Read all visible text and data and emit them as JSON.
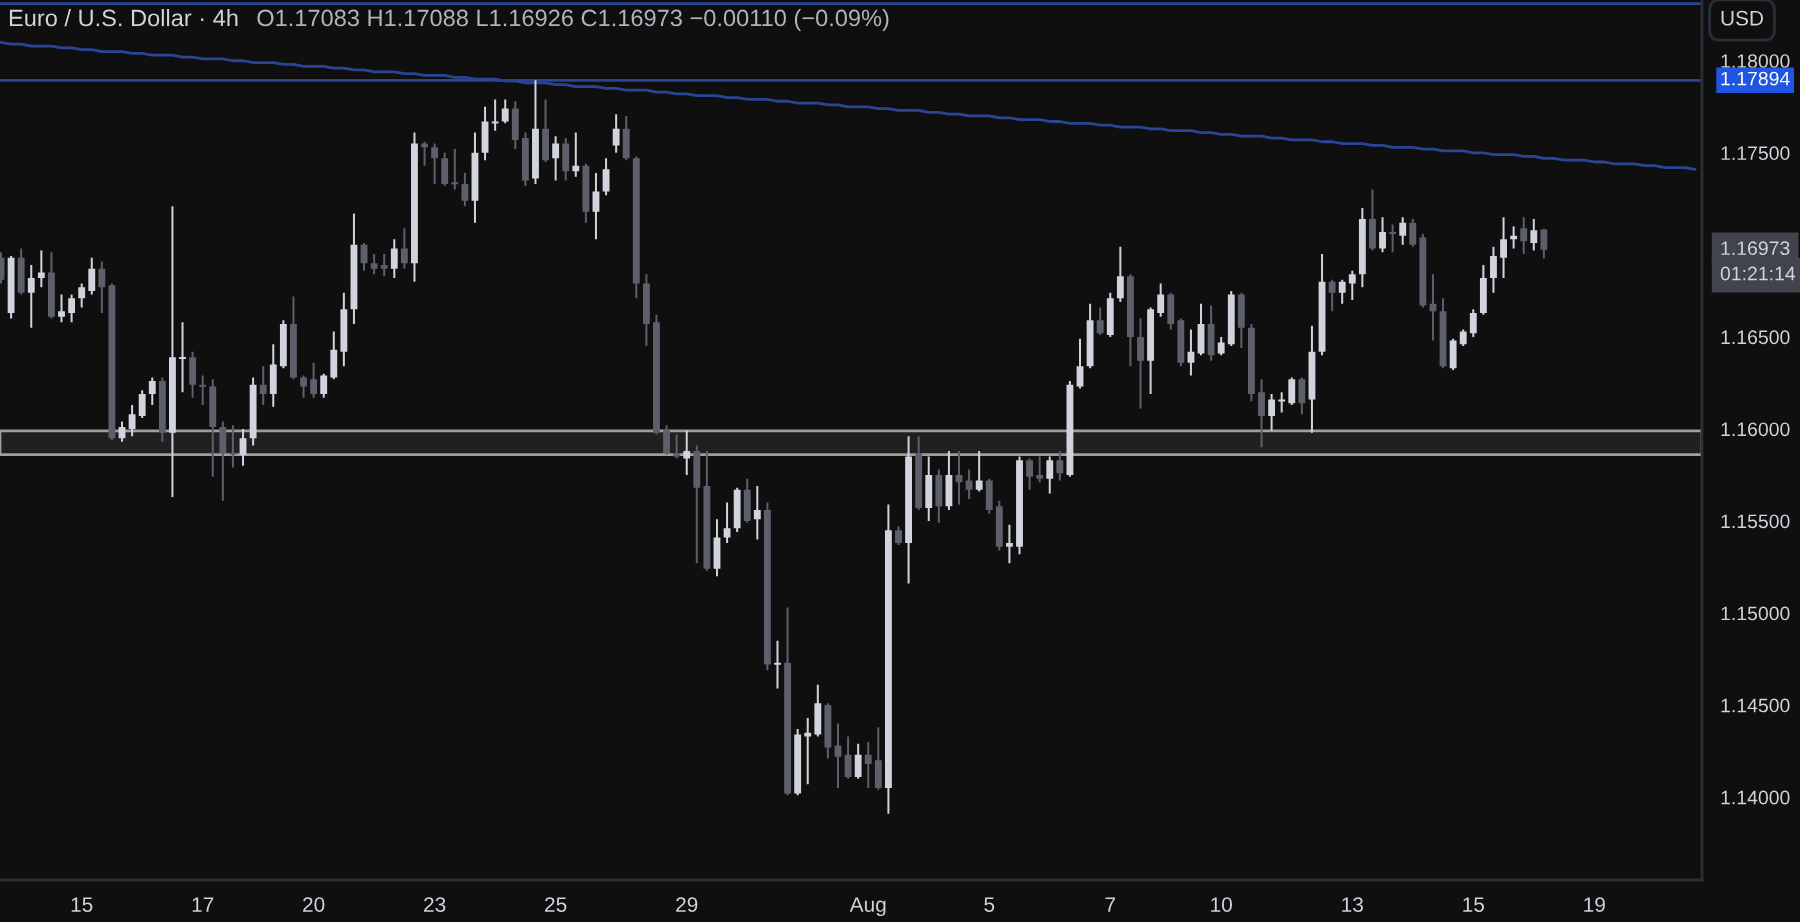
{
  "chart_data": {
    "type": "candlestick",
    "title": "Euro / U.S. Dollar · 4h",
    "subtitle": "O1.17083 H1.17088 L1.16926 C1.16973 −0.00110 (−0.09%)",
    "ylabel": "USD",
    "categories": [
      null,
      null,
      null,
      null,
      null,
      null,
      null,
      null,
      "15",
      null,
      null,
      null,
      null,
      null,
      null,
      null,
      null,
      null,
      null,
      null,
      "17",
      null,
      null,
      null,
      null,
      null,
      null,
      null,
      null,
      null,
      null,
      "20",
      null,
      null,
      null,
      null,
      null,
      null,
      null,
      null,
      null,
      null,
      null,
      "23",
      null,
      null,
      null,
      null,
      null,
      null,
      null,
      null,
      null,
      null,
      null,
      "25",
      null,
      null,
      null,
      null,
      null,
      null,
      null,
      null,
      null,
      null,
      null,
      null,
      "29",
      null,
      null,
      null,
      null,
      null,
      null,
      null,
      null,
      null,
      null,
      null,
      null,
      null,
      null,
      null,
      null,
      null,
      "Aug",
      null,
      null,
      null,
      null,
      null,
      null,
      null,
      null,
      null,
      null,
      null,
      "5",
      null,
      null,
      null,
      null,
      null,
      null,
      null,
      null,
      null,
      null,
      null,
      "7",
      null,
      null,
      null,
      null,
      null,
      null,
      null,
      null,
      null,
      null,
      "10",
      null,
      null,
      null,
      null,
      null,
      null,
      null,
      null,
      null,
      null,
      null,
      null,
      "13",
      null,
      null,
      null,
      null,
      null,
      null,
      null,
      null,
      null,
      null,
      null,
      "15",
      null,
      null,
      null,
      null,
      null,
      null,
      null,
      null,
      null,
      null,
      null,
      "19",
      null,
      null,
      null,
      null,
      null,
      null,
      null,
      null,
      null,
      null
    ],
    "ylim": [
      1.1355,
      1.1833
    ],
    "yticks": [
      {
        "value": 1.14,
        "label": "1.14000"
      },
      {
        "value": 1.145,
        "label": "1.14500"
      },
      {
        "value": 1.15,
        "label": "1.15000"
      },
      {
        "value": 1.155,
        "label": "1.15500"
      },
      {
        "value": 1.16,
        "label": "1.16000"
      },
      {
        "value": 1.165,
        "label": "1.16500"
      },
      {
        "value": 1.175,
        "label": "1.17500"
      },
      {
        "value": 1.18,
        "label": "1.18000"
      }
    ],
    "series": [
      {
        "ohlc": [
          [
            1.1693,
            1.1696,
            1.1679,
            1.1681
          ],
          [
            1.1663,
            1.1694,
            1.166,
            1.1693
          ],
          [
            1.1693,
            1.1698,
            1.1673,
            1.1674
          ],
          [
            1.1674,
            1.1689,
            1.1655,
            1.1682
          ],
          [
            1.1682,
            1.1697,
            1.1677,
            1.1685
          ],
          [
            1.1685,
            1.1696,
            1.166,
            1.1661
          ],
          [
            1.1661,
            1.1673,
            1.1658,
            1.1664
          ],
          [
            1.1663,
            1.1673,
            1.1658,
            1.1671
          ],
          [
            1.1671,
            1.1679,
            1.1666,
            1.1677
          ],
          [
            1.1675,
            1.1693,
            1.1673,
            1.1687
          ],
          [
            1.1687,
            1.1691,
            1.1663,
            1.1677
          ],
          [
            1.1678,
            1.1679,
            1.1594,
            1.1595
          ],
          [
            1.1595,
            1.1604,
            1.1593,
            1.1601
          ],
          [
            1.16,
            1.1613,
            1.1596,
            1.1608
          ],
          [
            1.1607,
            1.1621,
            1.1606,
            1.1619
          ],
          [
            1.1619,
            1.1628,
            1.1613,
            1.1626
          ],
          [
            1.1626,
            1.1628,
            1.1593,
            1.1598
          ],
          [
            1.1598,
            1.1721,
            1.1563,
            1.1639
          ],
          [
            1.1638,
            1.1658,
            1.162,
            1.1639
          ],
          [
            1.1639,
            1.1642,
            1.1617,
            1.1624
          ],
          [
            1.1624,
            1.1629,
            1.1613,
            1.1623
          ],
          [
            1.1623,
            1.1627,
            1.1574,
            1.1601
          ],
          [
            1.1601,
            1.1604,
            1.1561,
            1.1587
          ],
          [
            1.1587,
            1.1602,
            1.1579,
            1.1586
          ],
          [
            1.1586,
            1.16,
            1.158,
            1.1595
          ],
          [
            1.1595,
            1.1628,
            1.1591,
            1.1624
          ],
          [
            1.1624,
            1.1634,
            1.1613,
            1.1619
          ],
          [
            1.1619,
            1.1646,
            1.1612,
            1.1635
          ],
          [
            1.1634,
            1.1659,
            1.1633,
            1.1657
          ],
          [
            1.1657,
            1.1672,
            1.1627,
            1.1628
          ],
          [
            1.1628,
            1.1629,
            1.1617,
            1.1623
          ],
          [
            1.1627,
            1.1636,
            1.1617,
            1.1619
          ],
          [
            1.1619,
            1.163,
            1.1617,
            1.1629
          ],
          [
            1.1628,
            1.1653,
            1.1627,
            1.1643
          ],
          [
            1.1642,
            1.1674,
            1.1634,
            1.1665
          ],
          [
            1.1665,
            1.1717,
            1.1657,
            1.17
          ],
          [
            1.17,
            1.1701,
            1.1686,
            1.169
          ],
          [
            1.169,
            1.1695,
            1.1684,
            1.1687
          ],
          [
            1.1689,
            1.1695,
            1.1683,
            1.1687
          ],
          [
            1.1687,
            1.1703,
            1.1682,
            1.1698
          ],
          [
            1.1698,
            1.1709,
            1.1687,
            1.169
          ],
          [
            1.169,
            1.1761,
            1.168,
            1.1755
          ],
          [
            1.1755,
            1.1756,
            1.1743,
            1.1753
          ],
          [
            1.1753,
            1.1755,
            1.1733,
            1.1747
          ],
          [
            1.1747,
            1.175,
            1.1732,
            1.1733
          ],
          [
            1.1734,
            1.1752,
            1.173,
            1.1733
          ],
          [
            1.1733,
            1.1739,
            1.1721,
            1.1724
          ],
          [
            1.1724,
            1.1761,
            1.1712,
            1.175
          ],
          [
            1.175,
            1.1775,
            1.1746,
            1.1767
          ],
          [
            1.1766,
            1.1779,
            1.1762,
            1.1767
          ],
          [
            1.1767,
            1.1779,
            1.1766,
            1.1774
          ],
          [
            1.1774,
            1.1778,
            1.1752,
            1.1757
          ],
          [
            1.1758,
            1.1761,
            1.1732,
            1.1735
          ],
          [
            1.1736,
            1.17894,
            1.1733,
            1.1763
          ],
          [
            1.1763,
            1.1779,
            1.1745,
            1.1746
          ],
          [
            1.1747,
            1.1759,
            1.1735,
            1.1755
          ],
          [
            1.1755,
            1.1758,
            1.1735,
            1.174
          ],
          [
            1.174,
            1.1761,
            1.1737,
            1.1743
          ],
          [
            1.1743,
            1.1744,
            1.1712,
            1.1718
          ],
          [
            1.1718,
            1.1739,
            1.1703,
            1.1729
          ],
          [
            1.1729,
            1.1747,
            1.1727,
            1.1741
          ],
          [
            1.1754,
            1.1771,
            1.175,
            1.1763
          ],
          [
            1.1763,
            1.177,
            1.1746,
            1.1747
          ],
          [
            1.1747,
            1.1748,
            1.1671,
            1.1679
          ],
          [
            1.1679,
            1.1684,
            1.1645,
            1.1657
          ],
          [
            1.1658,
            1.1662,
            1.1597,
            1.1598
          ],
          [
            1.16,
            1.1602,
            1.1586,
            1.1587
          ],
          [
            1.1587,
            1.1597,
            1.1584,
            1.1585
          ],
          [
            1.1584,
            1.1599,
            1.1575,
            1.1588
          ],
          [
            1.1588,
            1.1591,
            1.1527,
            1.1568
          ],
          [
            1.1569,
            1.1588,
            1.1523,
            1.1524
          ],
          [
            1.1524,
            1.1551,
            1.152,
            1.1541
          ],
          [
            1.1541,
            1.156,
            1.1538,
            1.1546
          ],
          [
            1.1546,
            1.1568,
            1.1544,
            1.1567
          ],
          [
            1.1567,
            1.1573,
            1.1549,
            1.155
          ],
          [
            1.1551,
            1.1569,
            1.154,
            1.1556
          ],
          [
            1.1556,
            1.156,
            1.1469,
            1.1472
          ],
          [
            1.1472,
            1.1485,
            1.1459,
            1.1473
          ],
          [
            1.1473,
            1.1503,
            1.1401,
            1.1402
          ],
          [
            1.1402,
            1.1437,
            1.1401,
            1.1434
          ],
          [
            1.1433,
            1.1443,
            1.1407,
            1.1435
          ],
          [
            1.1434,
            1.1461,
            1.1433,
            1.1451
          ],
          [
            1.145,
            1.1451,
            1.1421,
            1.1427
          ],
          [
            1.1428,
            1.144,
            1.1405,
            1.1422
          ],
          [
            1.1423,
            1.1433,
            1.141,
            1.1411
          ],
          [
            1.1411,
            1.1429,
            1.141,
            1.1423
          ],
          [
            1.1423,
            1.143,
            1.1405,
            1.1418
          ],
          [
            1.142,
            1.1438,
            1.1404,
            1.1405
          ],
          [
            1.1405,
            1.1559,
            1.1391,
            1.1545
          ],
          [
            1.1545,
            1.1547,
            1.1537,
            1.1538
          ],
          [
            1.1538,
            1.1596,
            1.1516,
            1.1585
          ],
          [
            1.1587,
            1.1596,
            1.1556,
            1.1557
          ],
          [
            1.1557,
            1.1585,
            1.155,
            1.1575
          ],
          [
            1.1575,
            1.1578,
            1.1549,
            1.1558
          ],
          [
            1.1558,
            1.1588,
            1.1556,
            1.1575
          ],
          [
            1.1575,
            1.1588,
            1.1559,
            1.1571
          ],
          [
            1.1572,
            1.1578,
            1.1562,
            1.1567
          ],
          [
            1.1567,
            1.1588,
            1.1566,
            1.1572
          ],
          [
            1.1572,
            1.1573,
            1.1554,
            1.1556
          ],
          [
            1.1558,
            1.1561,
            1.1534,
            1.1536
          ],
          [
            1.1536,
            1.1548,
            1.1527,
            1.1538
          ],
          [
            1.1536,
            1.1585,
            1.1532,
            1.1583
          ],
          [
            1.1583,
            1.1584,
            1.1567,
            1.1574
          ],
          [
            1.1575,
            1.1585,
            1.1571,
            1.1573
          ],
          [
            1.1573,
            1.1585,
            1.1565,
            1.1583
          ],
          [
            1.1583,
            1.1588,
            1.1572,
            1.1576
          ],
          [
            1.1575,
            1.1626,
            1.1574,
            1.1624
          ],
          [
            1.1623,
            1.1649,
            1.1622,
            1.1634
          ],
          [
            1.1634,
            1.1668,
            1.1633,
            1.1659
          ],
          [
            1.1659,
            1.1666,
            1.1651,
            1.1652
          ],
          [
            1.1651,
            1.1674,
            1.165,
            1.1671
          ],
          [
            1.1671,
            1.1699,
            1.1669,
            1.1683
          ],
          [
            1.1683,
            1.1684,
            1.1634,
            1.165
          ],
          [
            1.165,
            1.166,
            1.1611,
            1.1637
          ],
          [
            1.1637,
            1.1666,
            1.1619,
            1.1665
          ],
          [
            1.1663,
            1.1679,
            1.1661,
            1.1673
          ],
          [
            1.1673,
            1.1674,
            1.1654,
            1.1657
          ],
          [
            1.1659,
            1.166,
            1.1634,
            1.1636
          ],
          [
            1.1636,
            1.1654,
            1.1629,
            1.1642
          ],
          [
            1.1641,
            1.1668,
            1.164,
            1.1657
          ],
          [
            1.1657,
            1.1667,
            1.1637,
            1.164
          ],
          [
            1.1641,
            1.165,
            1.164,
            1.1647
          ],
          [
            1.1646,
            1.1675,
            1.1645,
            1.1673
          ],
          [
            1.1673,
            1.1674,
            1.1644,
            1.1655
          ],
          [
            1.1655,
            1.1657,
            1.1615,
            1.1619
          ],
          [
            1.162,
            1.1627,
            1.159,
            1.1607
          ],
          [
            1.1607,
            1.1619,
            1.1599,
            1.1616
          ],
          [
            1.1615,
            1.162,
            1.1609,
            1.1616
          ],
          [
            1.1614,
            1.1628,
            1.1613,
            1.1627
          ],
          [
            1.1627,
            1.1628,
            1.1608,
            1.1614
          ],
          [
            1.1616,
            1.1656,
            1.1598,
            1.1642
          ],
          [
            1.1642,
            1.1695,
            1.164,
            1.168
          ],
          [
            1.168,
            1.1681,
            1.1664,
            1.1674
          ],
          [
            1.1674,
            1.1681,
            1.1668,
            1.168
          ],
          [
            1.1679,
            1.1686,
            1.167,
            1.1684
          ],
          [
            1.1684,
            1.172,
            1.1677,
            1.1714
          ],
          [
            1.1714,
            1.173,
            1.1697,
            1.1698
          ],
          [
            1.1698,
            1.1715,
            1.1696,
            1.1707
          ],
          [
            1.1707,
            1.1711,
            1.1696,
            1.1706
          ],
          [
            1.1705,
            1.1715,
            1.17,
            1.1712
          ],
          [
            1.1712,
            1.1714,
            1.1699,
            1.17
          ],
          [
            1.1704,
            1.1706,
            1.1666,
            1.1667
          ],
          [
            1.1668,
            1.1684,
            1.1648,
            1.1664
          ],
          [
            1.1664,
            1.1671,
            1.1633,
            1.1634
          ],
          [
            1.1633,
            1.1649,
            1.1632,
            1.1648
          ],
          [
            1.1646,
            1.1654,
            1.1645,
            1.1653
          ],
          [
            1.1652,
            1.1665,
            1.165,
            1.1663
          ],
          [
            1.1663,
            1.1689,
            1.1662,
            1.1682
          ],
          [
            1.1682,
            1.1699,
            1.1674,
            1.1694
          ],
          [
            1.1693,
            1.1715,
            1.1682,
            1.1703
          ],
          [
            1.1703,
            1.171,
            1.1698,
            1.1705
          ],
          [
            1.1709,
            1.1715,
            1.1695,
            1.1702
          ],
          [
            1.1701,
            1.1714,
            1.1697,
            1.1708
          ],
          [
            1.17083,
            1.17088,
            1.16926,
            1.16973
          ],
          null,
          null,
          null,
          null,
          null,
          null,
          null,
          null,
          null,
          null,
          null,
          null,
          null,
          null,
          null
        ],
        "colors": [
          "#5d606b",
          "#d1d4dc",
          "#5d606b",
          "#d1d4dc",
          "#d1d4dc",
          "#5d606b",
          "#d1d4dc",
          "#d1d4dc",
          "#d1d4dc",
          "#d1d4dc",
          "#5d606b",
          "#5d606b",
          "#d1d4dc",
          "#d1d4dc",
          "#d1d4dc",
          "#d1d4dc",
          "#5d606b",
          "#d1d4dc",
          "#d1d4dc",
          "#5d606b",
          "#5d606b",
          "#5d606b",
          "#5d606b",
          "#5d606b",
          "#d1d4dc",
          "#d1d4dc",
          "#5d606b",
          "#d1d4dc",
          "#d1d4dc",
          "#5d606b",
          "#5d606b",
          "#5d606b",
          "#d1d4dc",
          "#d1d4dc",
          "#d1d4dc",
          "#d1d4dc",
          "#5d606b",
          "#5d606b",
          "#5d606b",
          "#d1d4dc",
          "#5d606b",
          "#d1d4dc",
          "#5d606b",
          "#5d606b",
          "#5d606b",
          "#5d606b",
          "#5d606b",
          "#d1d4dc",
          "#d1d4dc",
          "#d1d4dc",
          "#d1d4dc",
          "#5d606b",
          "#5d606b",
          "#d1d4dc",
          "#5d606b",
          "#d1d4dc",
          "#5d606b",
          "#d1d4dc",
          "#5d606b",
          "#d1d4dc",
          "#d1d4dc",
          "#d1d4dc",
          "#5d606b",
          "#5d606b",
          "#5d606b",
          "#5d606b",
          "#5d606b",
          "#5d606b",
          "#d1d4dc",
          "#5d606b",
          "#5d606b",
          "#d1d4dc",
          "#d1d4dc",
          "#d1d4dc",
          "#5d606b",
          "#d1d4dc",
          "#5d606b",
          "#d1d4dc",
          "#5d606b",
          "#d1d4dc",
          "#d1d4dc",
          "#d1d4dc",
          "#5d606b",
          "#5d606b",
          "#5d606b",
          "#d1d4dc",
          "#5d606b",
          "#5d606b",
          "#d1d4dc",
          "#5d606b",
          "#d1d4dc",
          "#5d606b",
          "#d1d4dc",
          "#5d606b",
          "#d1d4dc",
          "#5d606b",
          "#5d606b",
          "#d1d4dc",
          "#5d606b",
          "#5d606b",
          "#d1d4dc",
          "#d1d4dc",
          "#5d606b",
          "#5d606b",
          "#d1d4dc",
          "#5d606b",
          "#d1d4dc",
          "#d1d4dc",
          "#d1d4dc",
          "#5d606b",
          "#d1d4dc",
          "#d1d4dc",
          "#5d606b",
          "#5d606b",
          "#d1d4dc",
          "#d1d4dc",
          "#5d606b",
          "#5d606b",
          "#d1d4dc",
          "#d1d4dc",
          "#5d606b",
          "#d1d4dc",
          "#d1d4dc",
          "#5d606b",
          "#5d606b",
          "#5d606b",
          "#d1d4dc",
          "#d1d4dc",
          "#d1d4dc",
          "#5d606b",
          "#d1d4dc",
          "#d1d4dc",
          "#5d606b",
          "#d1d4dc",
          "#d1d4dc",
          "#d1d4dc",
          "#5d606b",
          "#d1d4dc",
          "#5d606b",
          "#d1d4dc",
          "#5d606b",
          "#5d606b",
          "#5d606b",
          "#5d606b",
          "#d1d4dc",
          "#d1d4dc",
          "#d1d4dc",
          "#d1d4dc",
          "#d1d4dc",
          "#d1d4dc",
          "#d1d4dc",
          "#5d606b",
          "#d1d4dc",
          "#5d606b",
          null,
          null,
          null,
          null,
          null,
          null,
          null,
          null,
          null,
          null,
          null,
          null,
          null,
          null,
          null
        ]
      },
      {
        "type": "line",
        "color": "#2b4596",
        "values": [
          1.181,
          1.1809,
          1.1809,
          1.1808,
          1.1808,
          1.1808,
          1.1807,
          1.1807,
          1.1806,
          1.1806,
          1.1805,
          1.1805,
          1.1805,
          1.1804,
          1.1804,
          1.1803,
          1.1803,
          1.1803,
          1.1802,
          1.1802,
          1.1801,
          1.1801,
          1.1801,
          1.18,
          1.18,
          1.1799,
          1.1799,
          1.1799,
          1.1798,
          1.1798,
          1.1797,
          1.1797,
          1.1797,
          1.1796,
          1.1796,
          1.1795,
          1.1795,
          1.1794,
          1.1794,
          1.1794,
          1.1793,
          1.1793,
          1.1792,
          1.1792,
          1.1792,
          1.1791,
          1.1791,
          1.179,
          1.179,
          1.179,
          1.1789,
          1.1789,
          1.1788,
          1.1788,
          1.1788,
          1.1787,
          1.1787,
          1.1786,
          1.1786,
          1.1786,
          1.1785,
          1.1785,
          1.1784,
          1.1784,
          1.1784,
          1.1783,
          1.1783,
          1.1782,
          1.1782,
          1.1781,
          1.1781,
          1.1781,
          1.178,
          1.178,
          1.1779,
          1.1779,
          1.1779,
          1.1778,
          1.1778,
          1.1777,
          1.1777,
          1.1777,
          1.1776,
          1.1776,
          1.1775,
          1.1775,
          1.1775,
          1.1774,
          1.1774,
          1.1773,
          1.1773,
          1.1773,
          1.1772,
          1.1772,
          1.1771,
          1.1771,
          1.177,
          1.177,
          1.177,
          1.1769,
          1.1769,
          1.1768,
          1.1768,
          1.1768,
          1.1767,
          1.1767,
          1.1766,
          1.1766,
          1.1766,
          1.1765,
          1.1765,
          1.1764,
          1.1764,
          1.1764,
          1.1763,
          1.1763,
          1.1762,
          1.1762,
          1.1762,
          1.1761,
          1.1761,
          1.176,
          1.176,
          1.1759,
          1.1759,
          1.1759,
          1.1758,
          1.1758,
          1.1757,
          1.1757,
          1.1757,
          1.1756,
          1.1756,
          1.1755,
          1.1755,
          1.1755,
          1.1754,
          1.1754,
          1.1753,
          1.1753,
          1.1753,
          1.1752,
          1.1752,
          1.1751,
          1.1751,
          1.1751,
          1.175,
          1.175,
          1.1749,
          1.1749,
          1.1749,
          1.1748,
          1.1748,
          1.1747,
          1.1747,
          1.1746,
          1.1746,
          1.1746,
          1.1745,
          1.1745,
          1.1744,
          1.1744,
          1.1744,
          1.1743,
          1.1743,
          1.1742,
          1.1742,
          1.1742,
          1.1741
        ]
      }
    ],
    "ref_lines": [
      {
        "axis": "y",
        "value": 1.17894,
        "label": "1.17894",
        "color": "#2b4596"
      },
      {
        "axis": "y",
        "value": 1.1831,
        "color": "#2b4596"
      }
    ],
    "bands": [
      {
        "axis": "y",
        "from": 1.1586,
        "to": 1.1599,
        "color": "#9e9e9e"
      }
    ],
    "annotations": [
      "1.16973",
      "01:21:14"
    ]
  }
}
